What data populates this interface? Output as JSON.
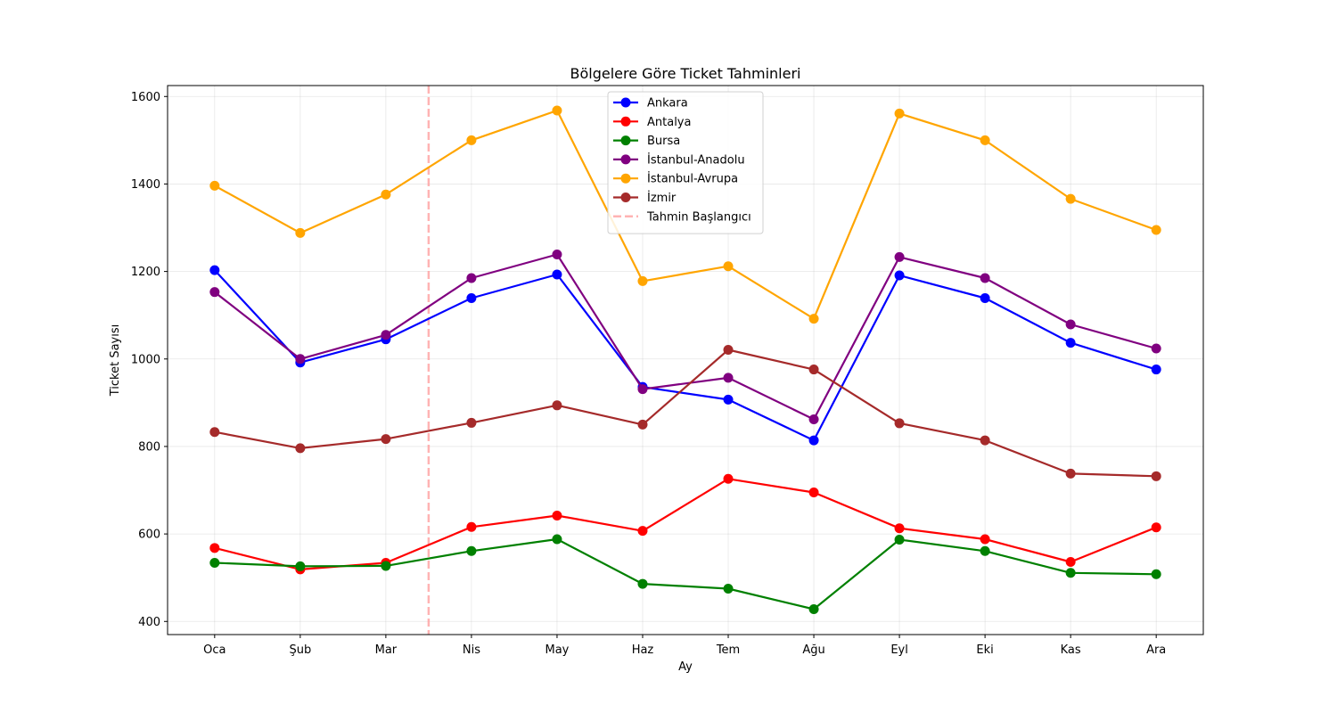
{
  "chart_data": {
    "type": "line",
    "title": "Bölgelere Göre Ticket Tahminleri",
    "xlabel": "Ay",
    "ylabel": "Ticket Sayısı",
    "categories": [
      "Oca",
      "Şub",
      "Mar",
      "Nis",
      "May",
      "Haz",
      "Tem",
      "Ağu",
      "Eyl",
      "Eki",
      "Kas",
      "Ara"
    ],
    "ylim": [
      370,
      1625
    ],
    "yticks": [
      400,
      600,
      800,
      1000,
      1200,
      1400,
      1600
    ],
    "grid": true,
    "legend_position": "top-center",
    "series": [
      {
        "name": "Ankara",
        "color": "#0000ff",
        "values": [
          1203,
          992,
          1045,
          1139,
          1193,
          936,
          907,
          814,
          1191,
          1139,
          1037,
          976
        ]
      },
      {
        "name": "Antalya",
        "color": "#ff0000",
        "values": [
          568,
          519,
          534,
          616,
          642,
          607,
          726,
          695,
          613,
          588,
          536,
          615
        ]
      },
      {
        "name": "Bursa",
        "color": "#008000",
        "values": [
          534,
          526,
          527,
          561,
          588,
          486,
          475,
          428,
          587,
          561,
          511,
          508
        ]
      },
      {
        "name": "İstanbul-Anadolu",
        "color": "#800080",
        "values": [
          1153,
          1000,
          1055,
          1185,
          1239,
          931,
          957,
          862,
          1233,
          1185,
          1079,
          1024
        ]
      },
      {
        "name": "İstanbul-Avrupa",
        "color": "#ffa500",
        "values": [
          1396,
          1288,
          1376,
          1500,
          1568,
          1178,
          1212,
          1092,
          1561,
          1500,
          1366,
          1295
        ]
      },
      {
        "name": "İzmir",
        "color": "#a52a2a",
        "values": [
          833,
          796,
          817,
          854,
          894,
          850,
          1021,
          976,
          853,
          814,
          738,
          732
        ]
      }
    ],
    "forecast_start": {
      "name": "Tahmin Başlangıcı",
      "x_position": 2.5,
      "color": "#ff9999",
      "style": "dashed"
    }
  }
}
